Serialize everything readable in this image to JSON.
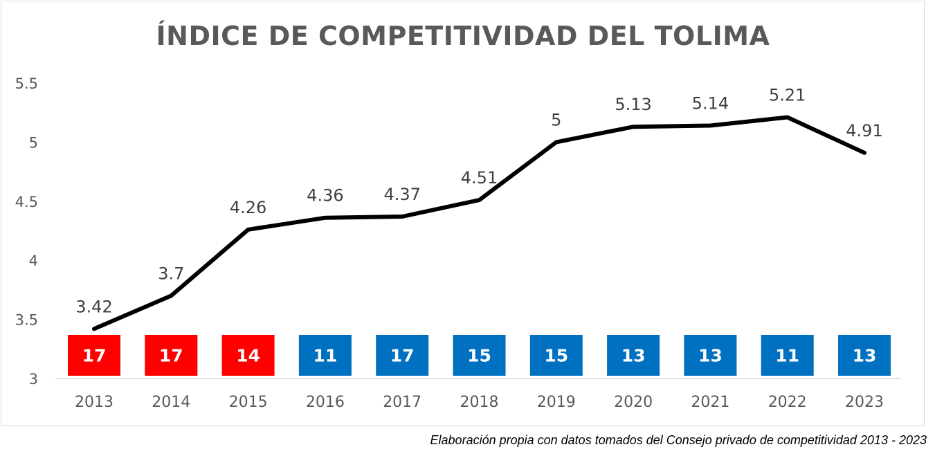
{
  "chart_data": {
    "type": "line",
    "title": "ÍNDICE DE COMPETITIVIDAD DEL TOLIMA",
    "categories": [
      "2013",
      "2014",
      "2015",
      "2016",
      "2017",
      "2018",
      "2019",
      "2020",
      "2021",
      "2022",
      "2023"
    ],
    "series": [
      {
        "values": [
          3.42,
          3.7,
          4.26,
          4.36,
          4.37,
          4.51,
          5,
          5.13,
          5.14,
          5.21,
          4.91
        ],
        "labels": [
          "3.42",
          "3.7",
          "4.26",
          "4.36",
          "4.37",
          "4.51",
          "5",
          "5.13",
          "5.14",
          "5.21",
          "4.91"
        ],
        "color": "#000000"
      }
    ],
    "rank_boxes": [
      {
        "value": "17",
        "color": "#ff0000"
      },
      {
        "value": "17",
        "color": "#ff0000"
      },
      {
        "value": "14",
        "color": "#ff0000"
      },
      {
        "value": "11",
        "color": "#0070c0"
      },
      {
        "value": "17",
        "color": "#0070c0"
      },
      {
        "value": "15",
        "color": "#0070c0"
      },
      {
        "value": "15",
        "color": "#0070c0"
      },
      {
        "value": "13",
        "color": "#0070c0"
      },
      {
        "value": "13",
        "color": "#0070c0"
      },
      {
        "value": "11",
        "color": "#0070c0"
      },
      {
        "value": "13",
        "color": "#0070c0"
      }
    ],
    "y_ticks": [
      "5.5",
      "5",
      "4.5",
      "4",
      "3.5",
      "3"
    ],
    "ylim": [
      3,
      5.5
    ],
    "grid": false,
    "xlabel": "",
    "ylabel": ""
  },
  "source_note": "Elaboración propia con datos tomados del Consejo privado de competitividad 2013 - 2023"
}
